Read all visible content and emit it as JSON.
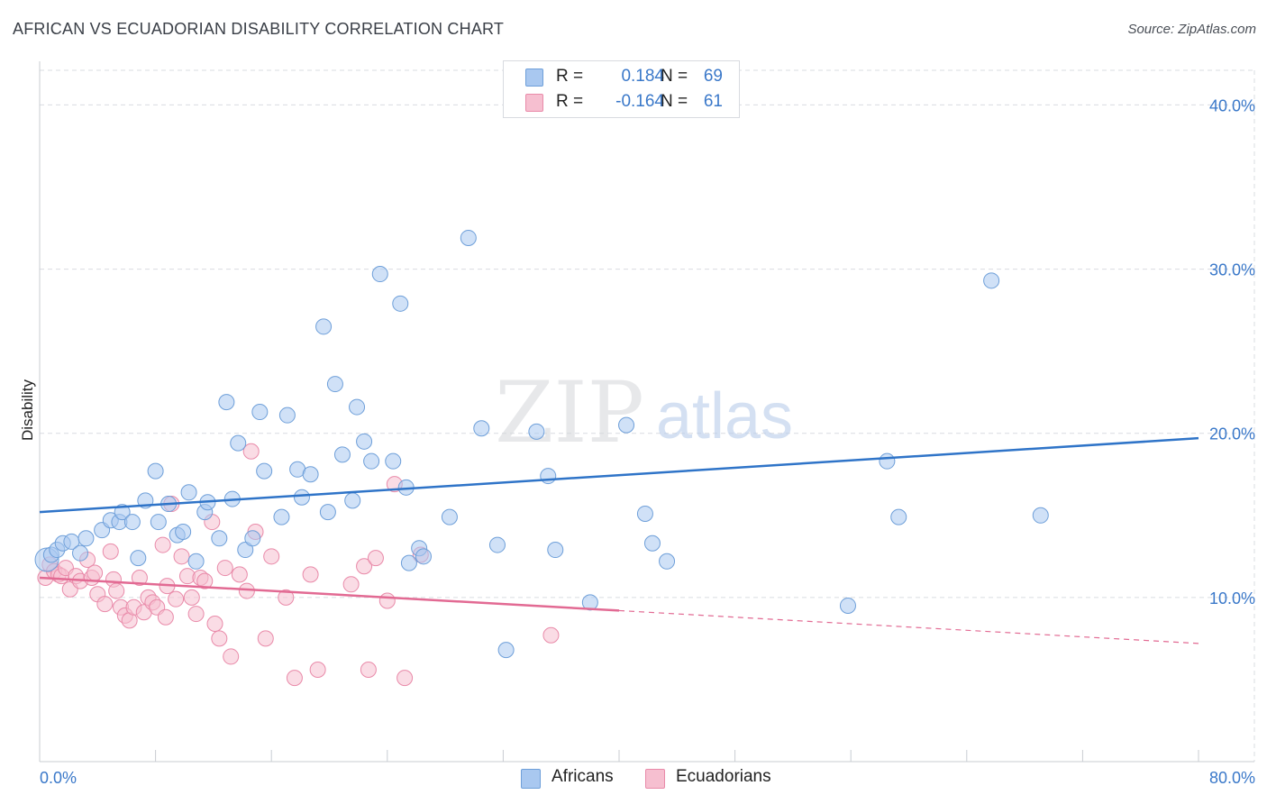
{
  "title": "AFRICAN VS ECUADORIAN DISABILITY CORRELATION CHART",
  "source": "Source: ZipAtlas.com",
  "watermark": {
    "zip": "ZIP",
    "atlas": "atlas"
  },
  "legend": {
    "rows": [
      {
        "r_label": "R =",
        "r_value": "0.184",
        "n_label": "N =",
        "n_value": "69",
        "color": "#a9c8f0"
      },
      {
        "r_label": "R =",
        "r_value": "-0.164",
        "n_label": "N =",
        "n_value": "61",
        "color": "#f6bfd0"
      }
    ]
  },
  "colors": {
    "africans_fill": "#a9c8f0",
    "africans_stroke": "#6e9fd9",
    "africans_line": "#2f74c8",
    "ecuadorians_fill": "#f6bfd0",
    "ecuadorians_stroke": "#e98aa9",
    "ecuadorians_line": "#e26a93",
    "tick_text": "#3a78c9",
    "grid": "#d9dce1"
  },
  "chart_data": {
    "type": "scatter",
    "title": "AFRICAN VS ECUADORIAN DISABILITY CORRELATION CHART",
    "xlabel": "",
    "ylabel": "Disability",
    "xlim": [
      0,
      80
    ],
    "ylim": [
      0,
      42
    ],
    "x_tick_labels": [
      "0.0%",
      "80.0%"
    ],
    "y_ticks": [
      10,
      20,
      30,
      40
    ],
    "y_tick_labels": [
      "10.0%",
      "20.0%",
      "30.0%",
      "40.0%"
    ],
    "grid": true,
    "legend_position": "top-center",
    "series": [
      {
        "name": "Africans",
        "trend": {
          "x": [
            0,
            80
          ],
          "y": [
            15.2,
            19.7
          ],
          "solid_until": 80
        },
        "points": [
          [
            0.5,
            12.3
          ],
          [
            0.8,
            12.6
          ],
          [
            1.2,
            12.9
          ],
          [
            1.6,
            13.3
          ],
          [
            2.2,
            13.4
          ],
          [
            2.8,
            12.7
          ],
          [
            3.2,
            13.6
          ],
          [
            4.3,
            14.1
          ],
          [
            4.9,
            14.7
          ],
          [
            5.5,
            14.6
          ],
          [
            5.7,
            15.2
          ],
          [
            6.4,
            14.6
          ],
          [
            6.8,
            12.4
          ],
          [
            7.3,
            15.9
          ],
          [
            8.0,
            17.7
          ],
          [
            8.2,
            14.6
          ],
          [
            8.9,
            15.7
          ],
          [
            9.5,
            13.8
          ],
          [
            9.9,
            14.0
          ],
          [
            10.3,
            16.4
          ],
          [
            10.8,
            12.2
          ],
          [
            11.4,
            15.2
          ],
          [
            11.6,
            15.8
          ],
          [
            12.4,
            13.6
          ],
          [
            12.9,
            21.9
          ],
          [
            13.3,
            16.0
          ],
          [
            13.7,
            19.4
          ],
          [
            14.2,
            12.9
          ],
          [
            14.7,
            13.6
          ],
          [
            15.2,
            21.3
          ],
          [
            15.5,
            17.7
          ],
          [
            16.7,
            14.9
          ],
          [
            17.1,
            21.1
          ],
          [
            17.8,
            17.8
          ],
          [
            18.1,
            16.1
          ],
          [
            18.7,
            17.5
          ],
          [
            19.6,
            26.5
          ],
          [
            19.9,
            15.2
          ],
          [
            20.4,
            23.0
          ],
          [
            20.9,
            18.7
          ],
          [
            21.6,
            15.9
          ],
          [
            21.9,
            21.6
          ],
          [
            22.4,
            19.5
          ],
          [
            22.9,
            18.3
          ],
          [
            23.5,
            29.7
          ],
          [
            24.4,
            18.3
          ],
          [
            24.9,
            27.9
          ],
          [
            25.3,
            16.7
          ],
          [
            25.5,
            12.1
          ],
          [
            26.2,
            13.0
          ],
          [
            26.5,
            12.5
          ],
          [
            28.3,
            14.9
          ],
          [
            29.6,
            31.9
          ],
          [
            30.5,
            20.3
          ],
          [
            31.6,
            13.2
          ],
          [
            32.2,
            6.8
          ],
          [
            34.3,
            20.1
          ],
          [
            35.1,
            17.4
          ],
          [
            35.6,
            12.9
          ],
          [
            38.0,
            9.7
          ],
          [
            40.5,
            20.5
          ],
          [
            41.8,
            15.1
          ],
          [
            42.3,
            13.3
          ],
          [
            43.3,
            12.2
          ],
          [
            55.8,
            9.5
          ],
          [
            58.5,
            18.3
          ],
          [
            59.3,
            14.9
          ],
          [
            65.7,
            29.3
          ],
          [
            69.1,
            15.0
          ]
        ]
      },
      {
        "name": "Ecuadorians",
        "trend": {
          "x": [
            0,
            80
          ],
          "y": [
            11.2,
            7.2
          ],
          "solid_until": 40
        },
        "points": [
          [
            0.4,
            11.2
          ],
          [
            0.7,
            12.0
          ],
          [
            1.0,
            11.6
          ],
          [
            1.3,
            11.4
          ],
          [
            1.5,
            11.3
          ],
          [
            1.8,
            11.8
          ],
          [
            2.1,
            10.5
          ],
          [
            2.5,
            11.3
          ],
          [
            2.8,
            11.0
          ],
          [
            3.3,
            12.3
          ],
          [
            3.6,
            11.2
          ],
          [
            3.8,
            11.5
          ],
          [
            4.0,
            10.2
          ],
          [
            4.5,
            9.6
          ],
          [
            4.9,
            12.8
          ],
          [
            5.1,
            11.1
          ],
          [
            5.3,
            10.4
          ],
          [
            5.6,
            9.4
          ],
          [
            5.9,
            8.9
          ],
          [
            6.2,
            8.6
          ],
          [
            6.5,
            9.4
          ],
          [
            6.9,
            11.2
          ],
          [
            7.2,
            9.1
          ],
          [
            7.5,
            10.0
          ],
          [
            7.8,
            9.7
          ],
          [
            8.1,
            9.4
          ],
          [
            8.5,
            13.2
          ],
          [
            8.7,
            8.8
          ],
          [
            8.8,
            10.7
          ],
          [
            9.1,
            15.7
          ],
          [
            9.4,
            9.9
          ],
          [
            9.8,
            12.5
          ],
          [
            10.2,
            11.3
          ],
          [
            10.5,
            10.0
          ],
          [
            10.8,
            9.0
          ],
          [
            11.1,
            11.2
          ],
          [
            11.4,
            11.0
          ],
          [
            11.9,
            14.6
          ],
          [
            12.1,
            8.4
          ],
          [
            12.4,
            7.5
          ],
          [
            12.8,
            11.8
          ],
          [
            13.2,
            6.4
          ],
          [
            13.8,
            11.4
          ],
          [
            14.3,
            10.4
          ],
          [
            14.6,
            18.9
          ],
          [
            14.9,
            14.0
          ],
          [
            15.6,
            7.5
          ],
          [
            16.0,
            12.5
          ],
          [
            17.0,
            10.0
          ],
          [
            17.6,
            5.1
          ],
          [
            18.7,
            11.4
          ],
          [
            19.2,
            5.6
          ],
          [
            21.5,
            10.8
          ],
          [
            22.4,
            11.9
          ],
          [
            22.7,
            5.6
          ],
          [
            23.2,
            12.4
          ],
          [
            24.0,
            9.8
          ],
          [
            24.5,
            16.9
          ],
          [
            25.2,
            5.1
          ],
          [
            26.3,
            12.6
          ],
          [
            35.3,
            7.7
          ]
        ]
      }
    ]
  },
  "bottom_legend": [
    {
      "label": "Africans",
      "color": "#a9c8f0"
    },
    {
      "label": "Ecuadorians",
      "color": "#f6bfd0"
    }
  ]
}
